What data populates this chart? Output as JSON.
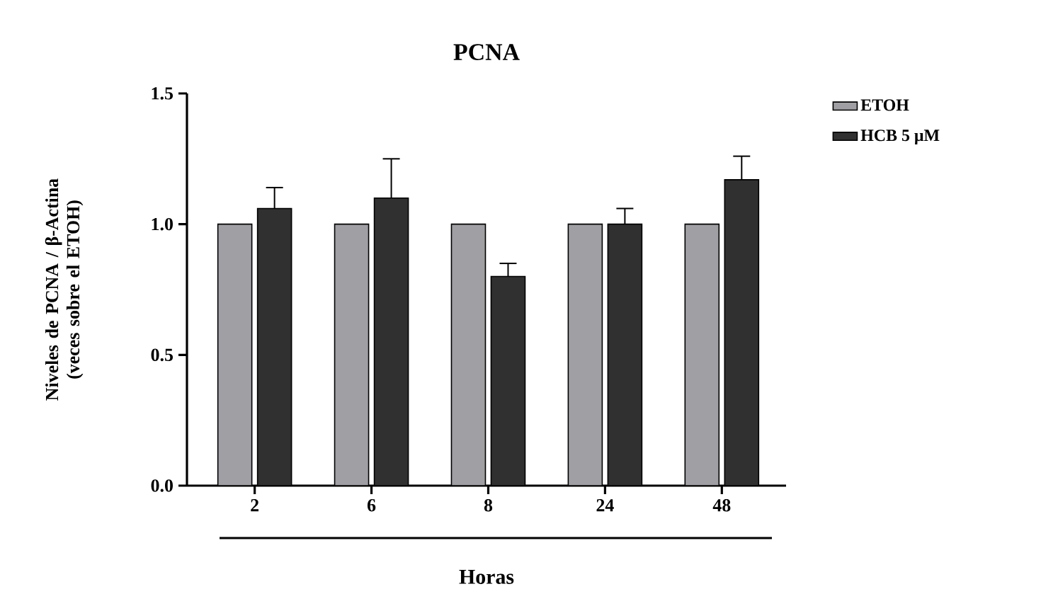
{
  "chart_data": {
    "type": "bar",
    "title": "PCNA",
    "xlabel": "Horas",
    "ylabel": "Niveles de PCNA / β-Actina (veces sobre el ETOH)",
    "categories": [
      "2",
      "6",
      "8",
      "24",
      "48"
    ],
    "series": [
      {
        "name": "ETOH",
        "color": "#a0a0a4",
        "values": [
          1.0,
          1.0,
          1.0,
          1.0,
          1.0
        ]
      },
      {
        "name": "HCB 5 μM",
        "color": "#303030",
        "values": [
          1.06,
          1.1,
          0.8,
          1.0,
          1.17
        ],
        "errors": [
          [
            1.06,
            1.14
          ],
          [
            1.1,
            1.25
          ],
          [
            0.8,
            0.85
          ],
          [
            1.0,
            1.06
          ],
          [
            1.17,
            1.26
          ]
        ]
      }
    ],
    "ylim": [
      0,
      1.5
    ],
    "yticks": [
      {
        "value": 0,
        "label": "0.0"
      },
      {
        "value": 0.5,
        "label": "0.5"
      },
      {
        "value": 1.0,
        "label": "1.0"
      },
      {
        "value": 1.5,
        "label": "1.5"
      }
    ],
    "legend": "top right",
    "grid": false
  }
}
